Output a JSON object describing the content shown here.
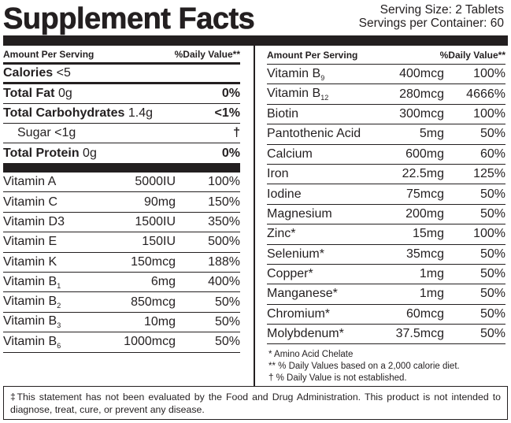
{
  "title": "Supplement Facts",
  "serving_size": "Serving Size: 2 Tablets",
  "servings_per_container": "Servings per Container: 60",
  "left": {
    "header": {
      "amount": "Amount Per Serving",
      "dv": "%Daily Value**"
    },
    "calories": {
      "label": "Calories",
      "value": "<5"
    },
    "total_fat": {
      "label": "Total Fat",
      "amount": "0g",
      "dv": "0%"
    },
    "total_carbs": {
      "label": "Total Carbohydrates",
      "amount": "1.4g",
      "dv": "<1%"
    },
    "sugar": {
      "label": "Sugar",
      "amount": "<1g",
      "dv": "†"
    },
    "total_protein": {
      "label": "Total Protein",
      "amount": "0g",
      "dv": "0%"
    },
    "vitamins": [
      {
        "name": "Vitamin A",
        "sub": "",
        "amount": "5000IU",
        "dv": "100%"
      },
      {
        "name": "Vitamin C",
        "sub": "",
        "amount": "90mg",
        "dv": "150%"
      },
      {
        "name": "Vitamin D3",
        "sub": "",
        "amount": "1500IU",
        "dv": "350%"
      },
      {
        "name": "Vitamin E",
        "sub": "",
        "amount": "150IU",
        "dv": "500%"
      },
      {
        "name": "Vitamin K",
        "sub": "",
        "amount": "150mcg",
        "dv": "188%"
      },
      {
        "name": "Vitamin B",
        "sub": "1",
        "amount": "6mg",
        "dv": "400%"
      },
      {
        "name": "Vitamin B",
        "sub": "2",
        "amount": "850mcg",
        "dv": "50%"
      },
      {
        "name": "Vitamin B",
        "sub": "3",
        "amount": "10mg",
        "dv": "50%"
      },
      {
        "name": "Vitamin B",
        "sub": "6",
        "amount": "1000mcg",
        "dv": "50%"
      }
    ]
  },
  "right": {
    "header": {
      "amount": "Amount Per Serving",
      "dv": "%Daily Value**"
    },
    "nutrients": [
      {
        "name": "Vitamin B",
        "sub": "9",
        "amount": "400mcg",
        "dv": "100%"
      },
      {
        "name": "Vitamin B",
        "sub": "12",
        "amount": "280mcg",
        "dv": "4666%"
      },
      {
        "name": "Biotin",
        "sub": "",
        "amount": "300mcg",
        "dv": "100%"
      },
      {
        "name": "Pantothenic Acid",
        "sub": "",
        "amount": "5mg",
        "dv": "50%"
      },
      {
        "name": "Calcium",
        "sub": "",
        "amount": "600mg",
        "dv": "60%"
      },
      {
        "name": "Iron",
        "sub": "",
        "amount": "22.5mg",
        "dv": "125%"
      },
      {
        "name": "Iodine",
        "sub": "",
        "amount": "75mcg",
        "dv": "50%"
      },
      {
        "name": "Magnesium",
        "sub": "",
        "amount": "200mg",
        "dv": "50%"
      },
      {
        "name": "Zinc*",
        "sub": "",
        "amount": "15mg",
        "dv": "100%"
      },
      {
        "name": "Selenium*",
        "sub": "",
        "amount": "35mcg",
        "dv": "50%"
      },
      {
        "name": "Copper*",
        "sub": "",
        "amount": "1mg",
        "dv": "50%"
      },
      {
        "name": "Manganese*",
        "sub": "",
        "amount": "1mg",
        "dv": "50%"
      },
      {
        "name": "Chromium*",
        "sub": "",
        "amount": "60mcg",
        "dv": "50%"
      },
      {
        "name": "Molybdenum*",
        "sub": "",
        "amount": "37.5mcg",
        "dv": "50%"
      }
    ]
  },
  "footnotes": [
    "* Amino Acid Chelate",
    "** % Daily Values based on a 2,000 calorie diet.",
    "† % Daily Value is not established."
  ],
  "disclaimer": "‡This statement has not been evaluated by the Food and Drug Administration. This product is not intended to diagnose, treat, cure, or prevent any disease."
}
